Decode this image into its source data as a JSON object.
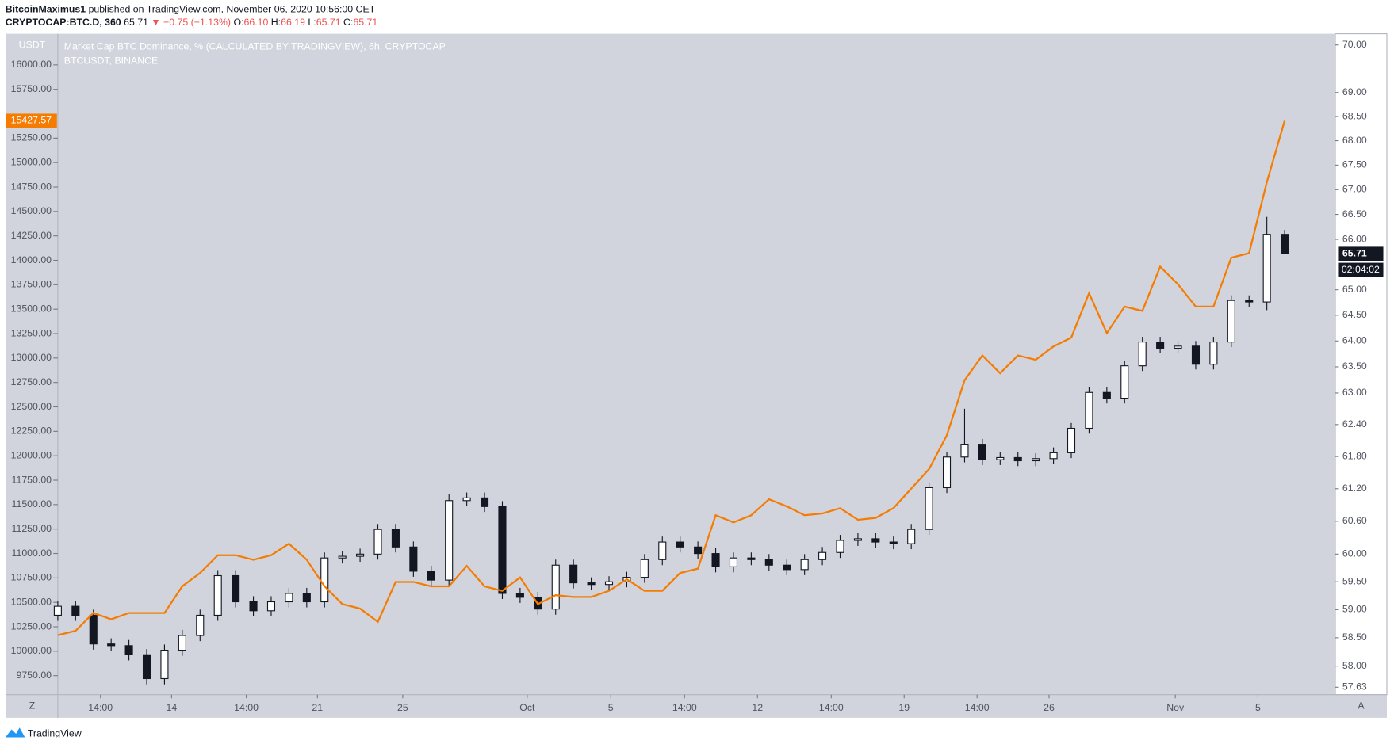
{
  "header": {
    "author": "BitcoinMaximus1",
    "published": "published on TradingView.com, November 06, 2020 10:56:00 CET",
    "ticker": {
      "symbol": "CRYPTOCAP:BTC.D, 360",
      "last": "65.71",
      "change": "▼ −0.75 (−1.13%)",
      "open_label": "O:",
      "open": "66.10",
      "high_label": "H:",
      "high": "66.19",
      "low_label": "L:",
      "low": "65.71",
      "close_label": "C:",
      "close": "65.71"
    }
  },
  "ui": {
    "countdown": "02:04:02",
    "zoom_button": "Z",
    "auto_button": "A",
    "logo": "TradingView"
  },
  "chart_data": {
    "type": "candlestick",
    "ylabel": "USDT",
    "y2scale": "log",
    "grid": false,
    "x": [
      0,
      1,
      2,
      3,
      4,
      5,
      6,
      7,
      8,
      9,
      10,
      11,
      12,
      13,
      14,
      15,
      16,
      17,
      18,
      19,
      20,
      21,
      22,
      23,
      24,
      25,
      26,
      27,
      28,
      29,
      30,
      31,
      32,
      33,
      34,
      35,
      36,
      37,
      38,
      39,
      40,
      41,
      42,
      43,
      44,
      45,
      46,
      47,
      48,
      49,
      50,
      51,
      52,
      53,
      54,
      55,
      56,
      57,
      58,
      59,
      60,
      61,
      62,
      63,
      64,
      65,
      66,
      67,
      68,
      69
    ],
    "xlim": [
      -2.9,
      71.85
    ],
    "xticks": [
      {
        "value": 2.4,
        "label": "14:00"
      },
      {
        "value": 6.4,
        "label": "14"
      },
      {
        "value": 10.6,
        "label": "14:00"
      },
      {
        "value": 14.6,
        "label": "21"
      },
      {
        "value": 19.4,
        "label": "25"
      },
      {
        "value": 26.4,
        "label": "Oct"
      },
      {
        "value": 31.1,
        "label": "5"
      },
      {
        "value": 35.25,
        "label": "14:00"
      },
      {
        "value": 39.35,
        "label": "12"
      },
      {
        "value": 43.5,
        "label": "14:00"
      },
      {
        "value": 47.6,
        "label": "19"
      },
      {
        "value": 51.7,
        "label": "14:00"
      },
      {
        "value": 55.75,
        "label": "26"
      },
      {
        "value": 62.85,
        "label": "Nov"
      },
      {
        "value": 67.5,
        "label": "5"
      }
    ],
    "ylim": [
      9555,
      16300
    ],
    "yticks": [
      {
        "value": 9750,
        "label": "9750.00"
      },
      {
        "value": 10000,
        "label": "10000.00"
      },
      {
        "value": 10250,
        "label": "10250.00"
      },
      {
        "value": 10500,
        "label": "10500.00"
      },
      {
        "value": 10750,
        "label": "10750.00"
      },
      {
        "value": 11000,
        "label": "11000.00"
      },
      {
        "value": 11250,
        "label": "11250.00"
      },
      {
        "value": 11500,
        "label": "11500.00"
      },
      {
        "value": 11750,
        "label": "11750.00"
      },
      {
        "value": 12000,
        "label": "12000.00"
      },
      {
        "value": 12250,
        "label": "12250.00"
      },
      {
        "value": 12500,
        "label": "12500.00"
      },
      {
        "value": 12750,
        "label": "12750.00"
      },
      {
        "value": 13000,
        "label": "13000.00"
      },
      {
        "value": 13250,
        "label": "13250.00"
      },
      {
        "value": 13500,
        "label": "13500.00"
      },
      {
        "value": 13750,
        "label": "13750.00"
      },
      {
        "value": 14000,
        "label": "14000.00"
      },
      {
        "value": 14250,
        "label": "14250.00"
      },
      {
        "value": 14500,
        "label": "14500.00"
      },
      {
        "value": 14750,
        "label": "14750.00"
      },
      {
        "value": 15000,
        "label": "15000.00"
      },
      {
        "value": 15250,
        "label": "15250.00"
      },
      {
        "value": 15750,
        "label": "15750.00"
      },
      {
        "value": 16000,
        "label": "16000.00"
      }
    ],
    "y2lim": [
      57.5,
      70.2
    ],
    "y2ticks": [
      57.63,
      {
        "value": 58,
        "label": "58.00"
      },
      {
        "value": 58.5,
        "label": "58.50"
      },
      {
        "value": 59,
        "label": "59.00"
      },
      {
        "value": 59.5,
        "label": "59.50"
      },
      {
        "value": 60,
        "label": "60.00"
      },
      {
        "value": 60.6,
        "label": "60.60"
      },
      {
        "value": 61.2,
        "label": "61.20"
      },
      {
        "value": 61.8,
        "label": "61.80"
      },
      {
        "value": 62.4,
        "label": "62.40"
      },
      {
        "value": 63,
        "label": "63.00"
      },
      {
        "value": 63.5,
        "label": "63.50"
      },
      {
        "value": 64,
        "label": "64.00"
      },
      {
        "value": 64.5,
        "label": "64.50"
      },
      {
        "value": 65,
        "label": "65.00"
      },
      {
        "value": 66,
        "label": "66.00"
      },
      {
        "value": 66.5,
        "label": "66.50"
      },
      {
        "value": 67,
        "label": "67.00"
      },
      {
        "value": 67.5,
        "label": "67.50"
      },
      {
        "value": 68,
        "label": "68.00"
      },
      {
        "value": 68.5,
        "label": "68.50"
      },
      {
        "value": 69,
        "label": "69.00"
      },
      {
        "value": 70,
        "label": "70.00"
      }
    ],
    "series": [
      {
        "name": "Market Cap BTC Dominance, % (CALCULATED BY TRADINGVIEW), 6h, CRYPTOCAP",
        "type": "candlestick",
        "axis": "y2",
        "up_color": "#ffffff",
        "down_color": "#131722",
        "open": [
          58.9,
          59.06,
          58.9,
          58.39,
          58.36,
          58.2,
          57.78,
          58.28,
          58.54,
          58.9,
          59.61,
          59.14,
          58.98,
          59.14,
          59.29,
          59.14,
          59.93,
          59.96,
          60.0,
          60.45,
          60.13,
          59.69,
          59.53,
          60.98,
          61.03,
          60.87,
          59.29,
          59.22,
          59.01,
          59.8,
          59.48,
          59.45,
          59.5,
          59.58,
          59.9,
          60.22,
          60.13,
          60.01,
          59.77,
          59.93,
          59.9,
          59.8,
          59.72,
          59.9,
          60.03,
          60.25,
          60.28,
          60.22,
          60.19,
          60.45,
          61.22,
          61.79,
          62.03,
          61.74,
          61.78,
          61.72,
          61.76,
          61.87,
          62.33,
          63.01,
          62.9,
          63.52,
          63.98,
          63.86,
          63.9,
          63.55,
          63.98,
          64.79,
          64.76,
          66.1
        ],
        "high": [
          59.16,
          59.16,
          59.0,
          58.49,
          58.46,
          58.3,
          58.38,
          58.64,
          59.0,
          59.71,
          59.71,
          59.24,
          59.24,
          59.39,
          59.39,
          60.03,
          60.06,
          60.1,
          60.55,
          60.55,
          60.23,
          59.79,
          61.1,
          61.13,
          61.13,
          60.97,
          59.39,
          59.32,
          59.9,
          59.9,
          59.58,
          59.6,
          59.68,
          60.0,
          60.32,
          60.32,
          60.23,
          60.11,
          60.03,
          60.03,
          60.0,
          59.9,
          60.0,
          60.13,
          60.35,
          60.38,
          60.38,
          60.32,
          60.55,
          61.32,
          61.89,
          62.7,
          62.13,
          61.88,
          61.88,
          61.86,
          61.97,
          62.43,
          63.11,
          63.11,
          63.62,
          64.08,
          64.08,
          64.0,
          64.0,
          64.08,
          64.89,
          64.89,
          66.45,
          66.19
        ],
        "low": [
          58.8,
          58.8,
          58.29,
          58.26,
          58.1,
          57.68,
          57.68,
          58.18,
          58.44,
          58.8,
          59.04,
          58.88,
          58.88,
          59.04,
          59.04,
          59.04,
          59.83,
          59.86,
          59.9,
          60.03,
          59.59,
          59.43,
          59.43,
          60.88,
          60.77,
          59.19,
          59.12,
          58.91,
          58.91,
          59.38,
          59.35,
          59.35,
          59.4,
          59.48,
          59.8,
          60.03,
          59.91,
          59.67,
          59.67,
          59.8,
          59.7,
          59.62,
          59.62,
          59.8,
          59.93,
          60.15,
          60.12,
          60.09,
          60.09,
          60.35,
          61.12,
          61.69,
          61.64,
          61.64,
          61.62,
          61.62,
          61.66,
          61.77,
          62.23,
          62.8,
          62.8,
          63.42,
          63.76,
          63.76,
          63.45,
          63.45,
          63.88,
          64.66,
          64.6,
          65.71
        ],
        "close": [
          59.06,
          58.9,
          58.39,
          58.36,
          58.2,
          57.78,
          58.28,
          58.54,
          58.9,
          59.61,
          59.14,
          58.98,
          59.14,
          59.29,
          59.14,
          59.93,
          59.96,
          60.0,
          60.45,
          60.13,
          59.69,
          59.53,
          60.98,
          61.03,
          60.87,
          59.29,
          59.22,
          59.01,
          59.8,
          59.48,
          59.45,
          59.5,
          59.58,
          59.9,
          60.22,
          60.13,
          60.01,
          59.77,
          59.93,
          59.9,
          59.8,
          59.72,
          59.9,
          60.03,
          60.25,
          60.28,
          60.22,
          60.19,
          60.45,
          61.22,
          61.79,
          62.03,
          61.74,
          61.78,
          61.72,
          61.76,
          61.87,
          62.33,
          63.01,
          62.9,
          63.52,
          63.98,
          63.86,
          63.9,
          63.55,
          63.98,
          64.79,
          64.76,
          66.1,
          65.71
        ]
      },
      {
        "name": "BTCUSDT, BINANCE",
        "type": "line",
        "axis": "y",
        "color": "#f57c00",
        "values": [
          10164,
          10209,
          10391,
          10327,
          10391,
          10391,
          10391,
          10664,
          10800,
          10982,
          10982,
          10936,
          10982,
          11100,
          10936,
          10664,
          10482,
          10436,
          10300,
          10709,
          10709,
          10664,
          10664,
          10873,
          10664,
          10618,
          10755,
          10482,
          10573,
          10555,
          10555,
          10618,
          10736,
          10618,
          10618,
          10800,
          10845,
          11391,
          11318,
          11391,
          11555,
          11482,
          11391,
          11409,
          11464,
          11345,
          11364,
          11464,
          11664,
          11864,
          12209,
          12773,
          13027,
          12845,
          13027,
          12982,
          13118,
          13209,
          13664,
          13255,
          13527,
          13482,
          13936,
          13755,
          13527,
          13527,
          14027,
          14073,
          14800,
          15427.57
        ]
      }
    ]
  }
}
